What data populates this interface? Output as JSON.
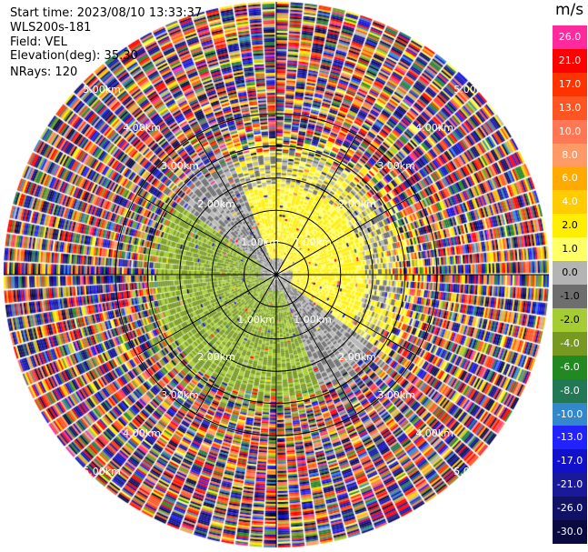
{
  "info": {
    "start_time": "Start time: 2023/08/10 13:33:37",
    "instrument": "WLS200s-181",
    "field": "Field: VEL",
    "elevation": "Elevation(deg): 35.30",
    "nrays": "NRays: 120"
  },
  "colorbar": {
    "unit": "m/s",
    "ticks": [
      "26.0",
      "21.0",
      "17.0",
      "13.0",
      "10.0",
      "8.0",
      "6.0",
      "4.0",
      "2.0",
      "1.0",
      "0.0",
      "-1.0",
      "-2.0",
      "-4.0",
      "-6.0",
      "-8.0",
      "-10.0",
      "-13.0",
      "-17.0",
      "-21.0",
      "-26.0",
      "-30.0"
    ],
    "colors": [
      "#ff2a9d",
      "#ff0000",
      "#ff3300",
      "#ff5522",
      "#ff7755",
      "#ff9966",
      "#ffaa00",
      "#ffcc00",
      "#ffee00",
      "#ffff66",
      "#b4b4b4",
      "#6e6e6e",
      "#a6cc33",
      "#779922",
      "#228822",
      "#227755",
      "#3388cc",
      "#2222ff",
      "#1111cc",
      "#1a1a99",
      "#111166",
      "#0a0a40"
    ]
  },
  "range_labels": {
    "r1": "1.00km",
    "r2": "2.00km",
    "r3": "3.00km",
    "r4": "4.00km",
    "r5": "5.00km"
  },
  "chart_data": {
    "type": "heatmap",
    "projection": "polar (PPI)",
    "n_rays": 120,
    "elevation_deg": 35.3,
    "field": "VEL",
    "units": "m/s",
    "range_rings_km": [
      1,
      2,
      3,
      4,
      5
    ],
    "range_max_km": 5.0,
    "color_scale": [
      -30,
      -26,
      -21,
      -17,
      -13,
      -10,
      -8,
      -6,
      -4,
      -2,
      -1,
      0,
      1,
      2,
      4,
      6,
      8,
      10,
      13,
      17,
      21,
      26
    ],
    "pattern": "near-range dipole: yellow (+1 to +4 m/s) toward north-east/east, green (-1 to -4 m/s) toward south-west/west, grey (~0 m/s) between; far range (>2.5 km) noisy random velocities"
  }
}
